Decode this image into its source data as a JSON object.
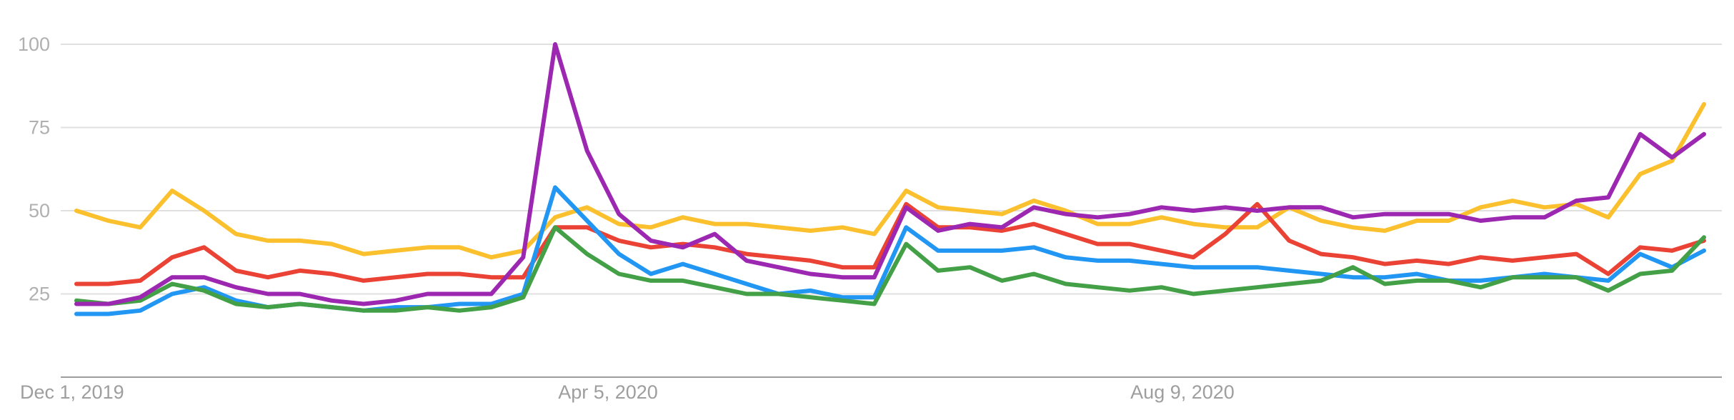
{
  "chart_data": {
    "type": "line",
    "title": "",
    "xlabel": "",
    "ylabel": "",
    "ylim": [
      0,
      100
    ],
    "yticks": [
      25,
      50,
      75,
      100
    ],
    "grid": true,
    "legend": "none",
    "xtick_labels": [
      {
        "label": "Dec 1, 2019",
        "index": 0
      },
      {
        "label": "Apr 5, 2020",
        "index": 18
      },
      {
        "label": "Aug 9, 2020",
        "index": 36
      }
    ],
    "x_start": "2019-12-01",
    "x_step": "1 week",
    "series": [
      {
        "color": "#fbc02d",
        "values": [
          50,
          47,
          45,
          56,
          50,
          43,
          41,
          41,
          40,
          37,
          38,
          39,
          39,
          36,
          38,
          48,
          51,
          46,
          45,
          48,
          46,
          46,
          45,
          44,
          45,
          43,
          56,
          51,
          50,
          49,
          53,
          50,
          46,
          46,
          48,
          46,
          45,
          45,
          51,
          47,
          45,
          44,
          47,
          47,
          51,
          53,
          51,
          52,
          48,
          61,
          65,
          82
        ]
      },
      {
        "color": "#ea4335",
        "values": [
          28,
          28,
          29,
          36,
          39,
          32,
          30,
          32,
          31,
          29,
          30,
          31,
          31,
          30,
          30,
          45,
          45,
          41,
          39,
          40,
          39,
          37,
          36,
          35,
          33,
          33,
          52,
          45,
          45,
          44,
          46,
          43,
          40,
          40,
          38,
          36,
          43,
          52,
          41,
          37,
          36,
          34,
          35,
          34,
          36,
          35,
          36,
          37,
          31,
          39,
          38,
          41
        ]
      },
      {
        "color": "#2196f3",
        "values": [
          19,
          19,
          20,
          25,
          27,
          23,
          21,
          22,
          21,
          20,
          21,
          21,
          22,
          22,
          25,
          57,
          47,
          37,
          31,
          34,
          31,
          28,
          25,
          26,
          24,
          24,
          45,
          38,
          38,
          38,
          39,
          36,
          35,
          35,
          34,
          33,
          33,
          33,
          32,
          31,
          30,
          30,
          31,
          29,
          29,
          30,
          31,
          30,
          29,
          37,
          33,
          38
        ]
      },
      {
        "color": "#43a047",
        "values": [
          23,
          22,
          23,
          28,
          26,
          22,
          21,
          22,
          21,
          20,
          20,
          21,
          20,
          21,
          24,
          45,
          37,
          31,
          29,
          29,
          27,
          25,
          25,
          24,
          23,
          22,
          40,
          32,
          33,
          29,
          31,
          28,
          27,
          26,
          27,
          25,
          26,
          27,
          28,
          29,
          33,
          28,
          29,
          29,
          27,
          30,
          30,
          30,
          26,
          31,
          32,
          42
        ]
      },
      {
        "color": "#9c27b0",
        "values": [
          22,
          22,
          24,
          30,
          30,
          27,
          25,
          25,
          23,
          22,
          23,
          25,
          25,
          25,
          36,
          100,
          68,
          49,
          41,
          39,
          43,
          35,
          33,
          31,
          30,
          30,
          51,
          44,
          46,
          45,
          51,
          49,
          48,
          49,
          51,
          50,
          51,
          50,
          51,
          51,
          48,
          49,
          49,
          49,
          47,
          48,
          48,
          53,
          54,
          73,
          66,
          73
        ]
      }
    ]
  }
}
